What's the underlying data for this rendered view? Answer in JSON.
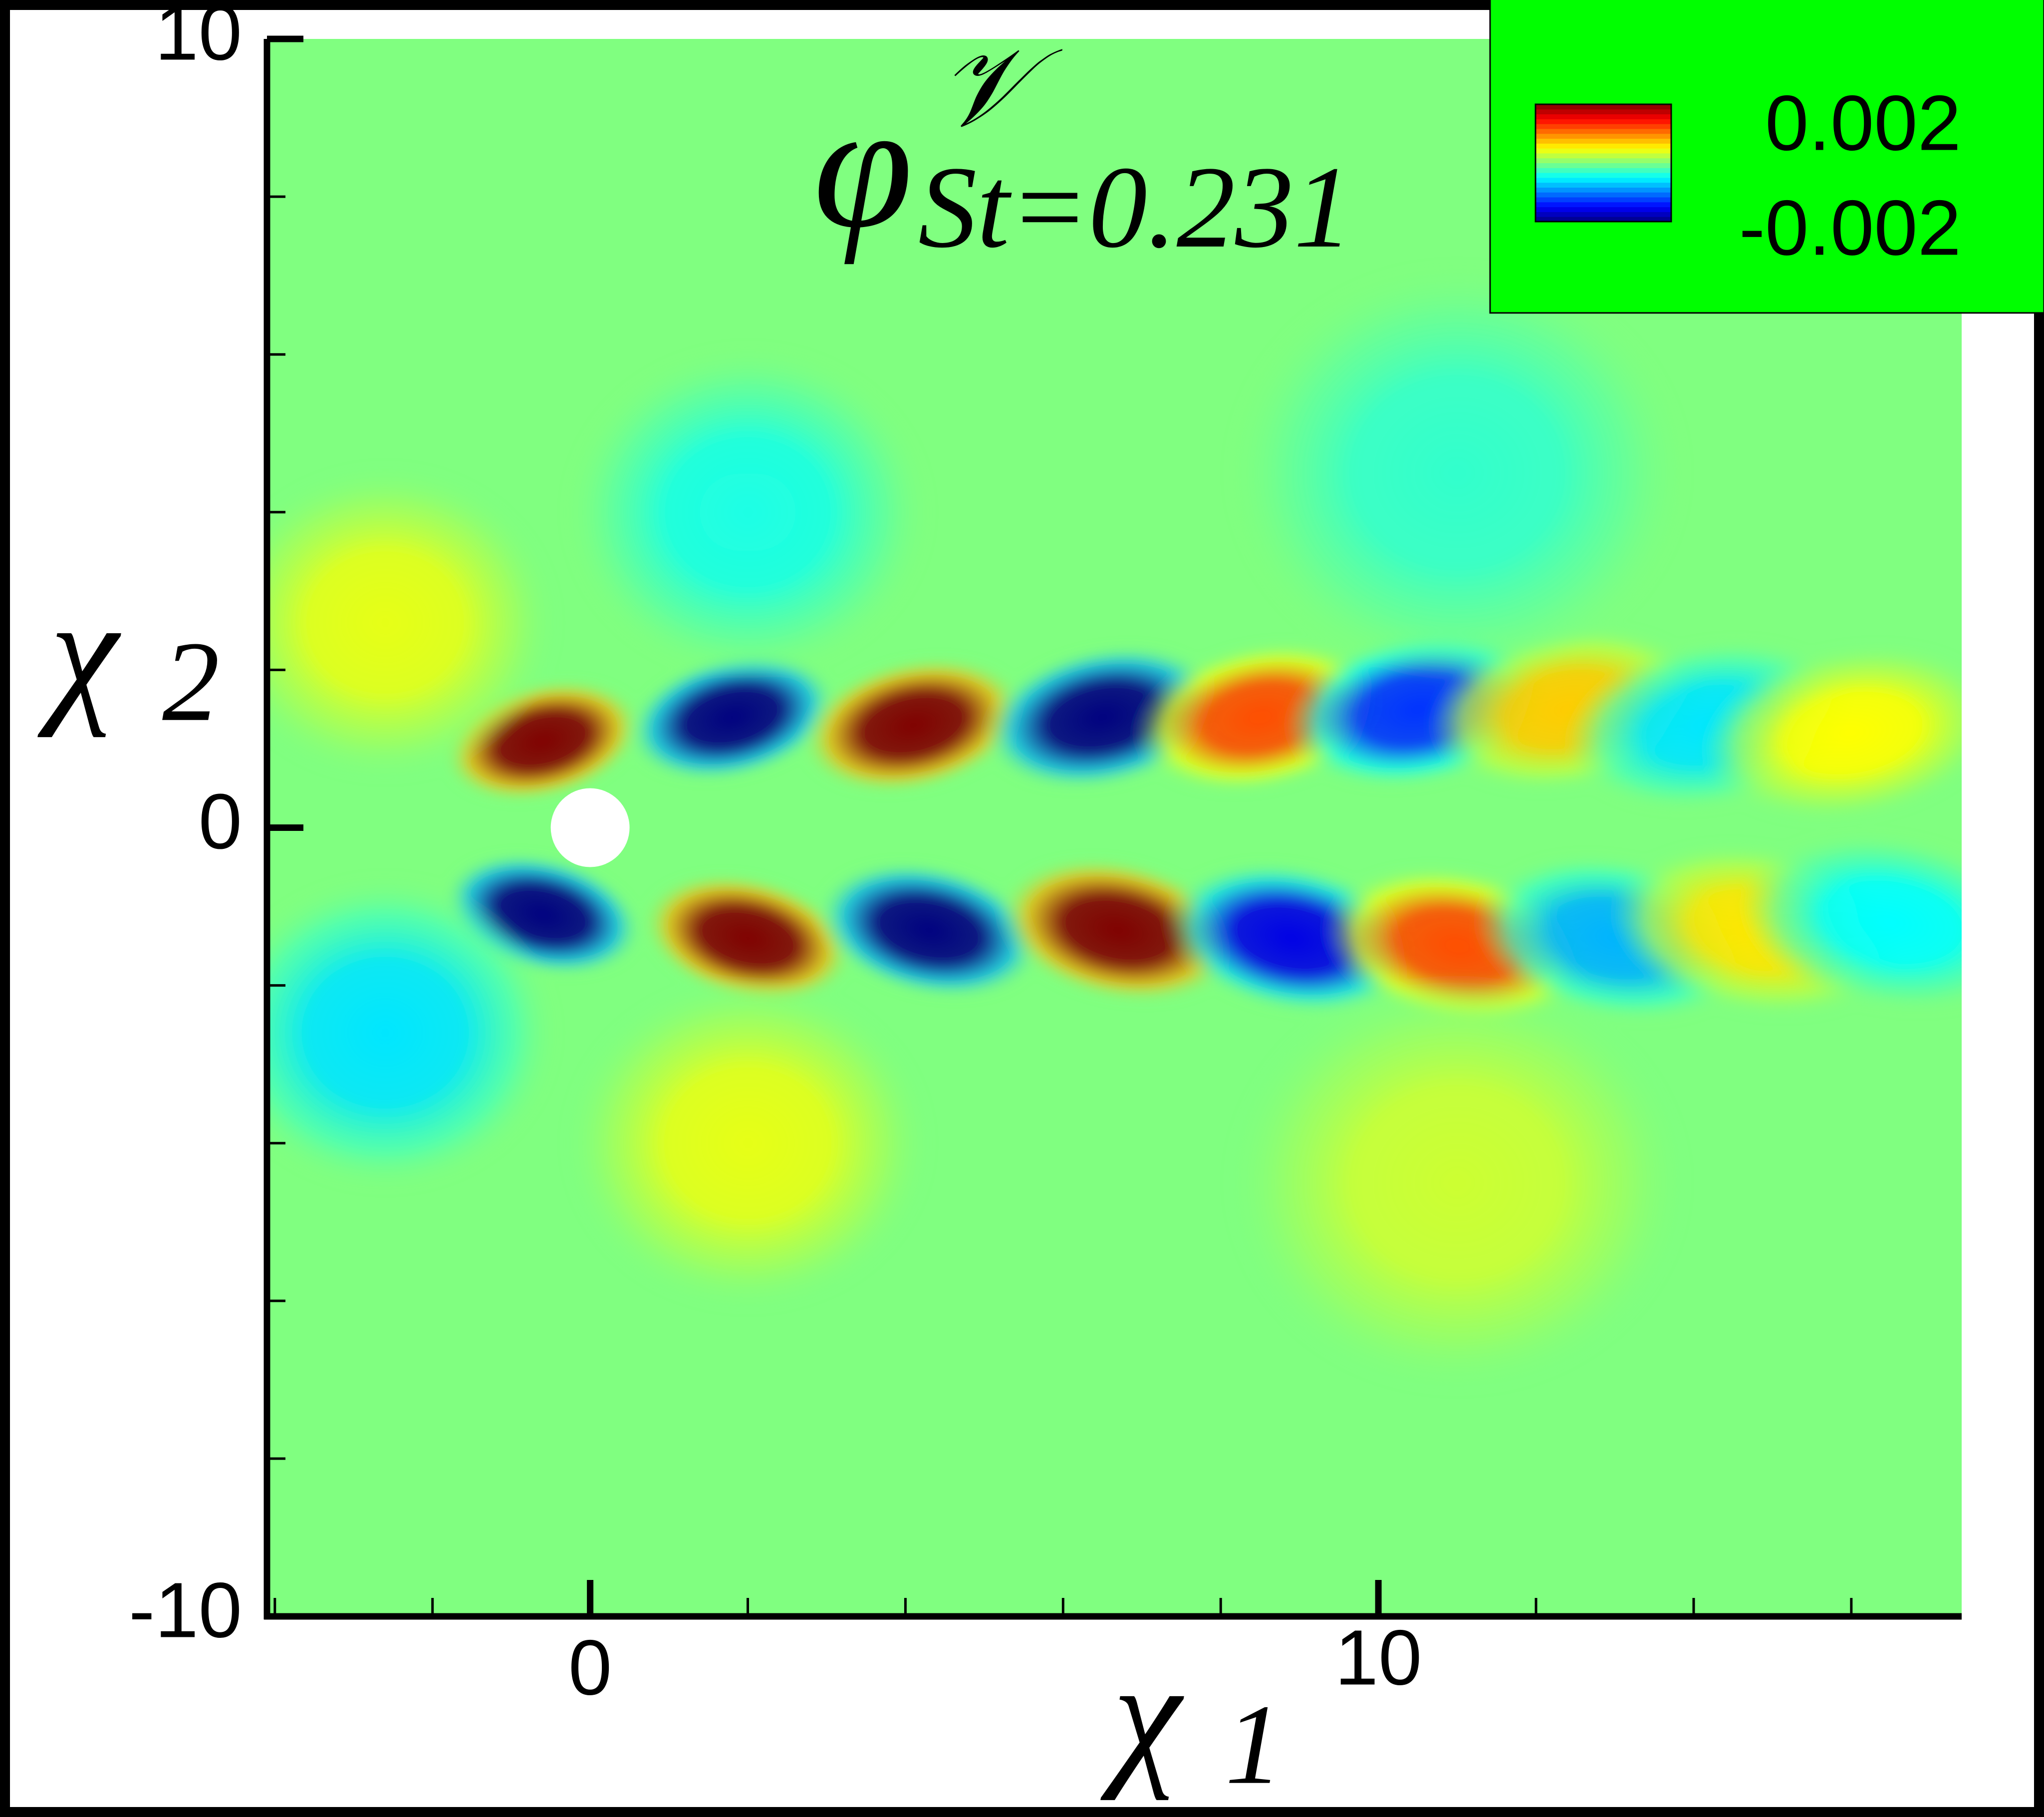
{
  "chart_data": {
    "type": "contour",
    "title": {
      "base": "φ",
      "superscript": "𝒱",
      "subscript": "St=0.231"
    },
    "xlabel": {
      "base": "χ",
      "subscript": "1"
    },
    "ylabel": {
      "base": "χ",
      "subscript": "2"
    },
    "xlim": [
      -4.1,
      17.4
    ],
    "ylim": [
      -10,
      10
    ],
    "xticks": [
      0,
      10
    ],
    "yticks": [
      -10,
      0,
      10
    ],
    "xminorticks": [
      -4,
      -2,
      2,
      4,
      6,
      8,
      12,
      14,
      16
    ],
    "yminorticks": [
      -8,
      -6,
      -4,
      -2,
      2,
      4,
      6,
      8
    ],
    "colormap": "jet",
    "clim": [
      -0.002,
      0.002
    ],
    "colorbar_ticks": [
      0.002,
      -0.002
    ],
    "field": [
      {
        "x": -0.6,
        "y": 1.1,
        "value": 0.002
      },
      {
        "x": 1.8,
        "y": 1.4,
        "value": -0.002
      },
      {
        "x": 4.1,
        "y": 1.3,
        "value": 0.002
      },
      {
        "x": 6.5,
        "y": 1.4,
        "value": -0.002
      },
      {
        "x": 8.5,
        "y": 1.4,
        "value": 0.0012
      },
      {
        "x": 10.5,
        "y": 1.5,
        "value": -0.0013
      },
      {
        "x": 12.4,
        "y": 1.5,
        "value": 0.0007
      },
      {
        "x": 14.2,
        "y": 1.3,
        "value": -0.0006
      },
      {
        "x": 16.0,
        "y": 1.2,
        "value": 0.0005
      },
      {
        "x": -0.6,
        "y": -1.1,
        "value": -0.002
      },
      {
        "x": 2.0,
        "y": -1.4,
        "value": 0.002
      },
      {
        "x": 4.3,
        "y": -1.3,
        "value": -0.002
      },
      {
        "x": 6.7,
        "y": -1.3,
        "value": 0.002
      },
      {
        "x": 8.9,
        "y": -1.4,
        "value": -0.0016
      },
      {
        "x": 11.0,
        "y": -1.5,
        "value": 0.0012
      },
      {
        "x": 13.0,
        "y": -1.4,
        "value": -0.0008
      },
      {
        "x": 14.8,
        "y": -1.3,
        "value": 0.0006
      },
      {
        "x": 16.5,
        "y": -1.2,
        "value": -0.0005
      },
      {
        "x": -2.6,
        "y": 2.6,
        "value": 0.0004
      },
      {
        "x": -2.6,
        "y": -2.6,
        "value": -0.0006
      },
      {
        "x": 2.0,
        "y": 4.0,
        "value": -0.0004
      },
      {
        "x": 2.0,
        "y": -4.0,
        "value": 0.0004
      },
      {
        "x": 11.0,
        "y": 4.5,
        "value": -0.0003
      },
      {
        "x": 11.0,
        "y": -4.5,
        "value": 0.0003
      }
    ]
  }
}
